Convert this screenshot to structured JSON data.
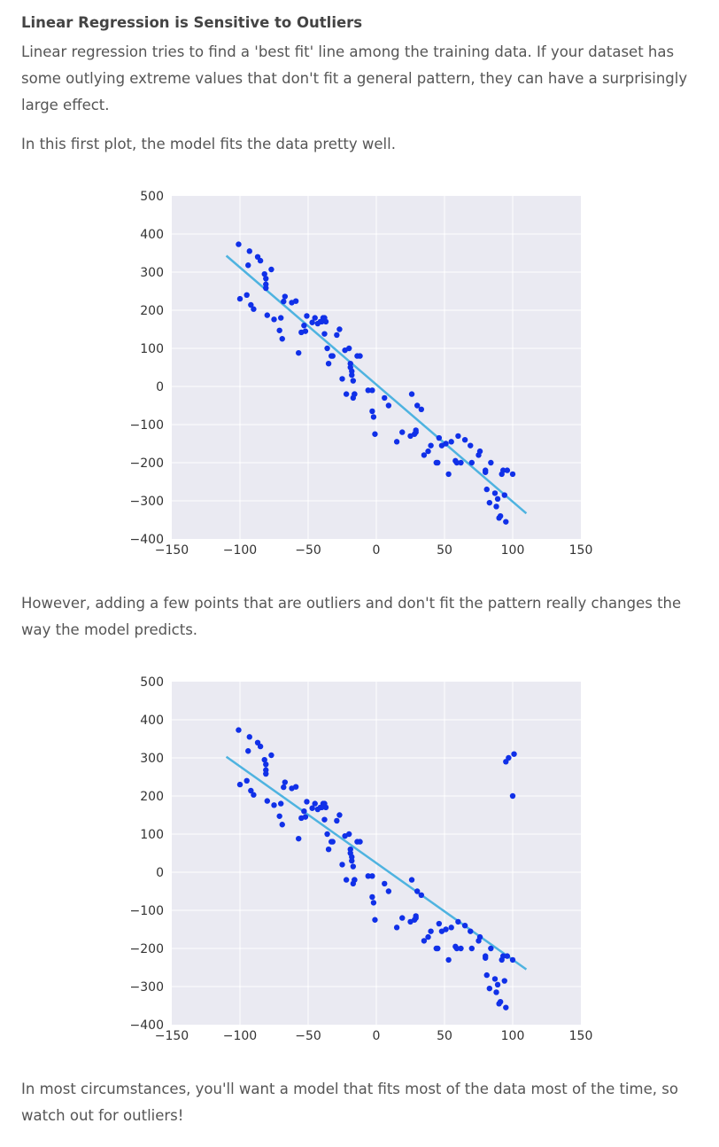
{
  "article": {
    "title": "Linear Regression is Sensitive to Outliers",
    "intro": "Linear regression tries to find a 'best fit' line among the training data. If your dataset has some outlying extreme values that don't fit a general pattern, they can have a surprisingly large effect.",
    "first_plot_caption": "In this first plot, the model fits the data pretty well.",
    "second_plot_caption": "However, adding a few points that are outliers and don't fit the pattern really changes the way the model predicts.",
    "conclusion": "In most circumstances, you'll want a model that fits most of the data most of the time, so watch out for outliers!"
  },
  "colors": {
    "plot_background": "#EAEAF2",
    "grid": "#FFFFFF",
    "points": "#1030E8",
    "fit_line": "#4EB3E0"
  },
  "chart_data": [
    {
      "type": "scatter",
      "title": "",
      "xlabel": "",
      "ylabel": "",
      "xlim": [
        -150,
        150
      ],
      "ylim": [
        -400,
        500
      ],
      "x_ticks": [
        "−150",
        "−100",
        "−50",
        "0",
        "50",
        "100",
        "150"
      ],
      "y_ticks": [
        "500",
        "400",
        "300",
        "200",
        "100",
        "0",
        "−100",
        "−200",
        "−300",
        "−400"
      ],
      "grid": true,
      "legend": "none",
      "fit_line": {
        "x": [
          -110,
          110
        ],
        "y": [
          343,
          -333
        ]
      },
      "points": {
        "x": [
          -101,
          -100,
          -95,
          -94,
          -93,
          -92,
          -90,
          -87,
          -85,
          -82,
          -81,
          -81,
          -81,
          -80,
          -77,
          -75,
          -71,
          -70,
          -69,
          -68,
          -67,
          -62,
          -59,
          -57,
          -55,
          -53,
          -52,
          -51,
          -47,
          -45,
          -43,
          -41,
          -40,
          -39,
          -38,
          -38,
          -37,
          -36,
          -35,
          -33,
          -32,
          -29,
          -27,
          -25,
          -23,
          -22,
          -20,
          -19,
          -19,
          -18,
          -18,
          -17,
          -17,
          -16,
          -16,
          -14,
          -12,
          -6,
          -3,
          -3,
          -2,
          -1,
          6,
          9,
          15,
          19,
          25,
          26,
          28,
          29,
          29,
          30,
          33,
          35,
          38,
          40,
          44,
          45,
          46,
          48,
          51,
          53,
          55,
          58,
          59,
          60,
          62,
          65,
          69,
          70,
          75,
          76,
          80,
          80,
          81,
          83,
          84,
          87,
          88,
          89,
          90,
          91,
          92,
          93,
          94,
          95,
          96,
          100
        ],
        "y": [
          373,
          230,
          240,
          318,
          355,
          214,
          203,
          340,
          330,
          295,
          268,
          258,
          283,
          187,
          307,
          176,
          147,
          180,
          125,
          223,
          236,
          220,
          224,
          88,
          142,
          160,
          145,
          185,
          168,
          180,
          165,
          170,
          170,
          180,
          180,
          138,
          170,
          100,
          60,
          80,
          80,
          135,
          150,
          20,
          95,
          -20,
          100,
          50,
          60,
          40,
          30,
          15,
          -30,
          -20,
          -20,
          80,
          80,
          -10,
          -10,
          -65,
          -80,
          -125,
          -30,
          -50,
          -145,
          -120,
          -130,
          -20,
          -125,
          -120,
          -115,
          -50,
          -60,
          -180,
          -170,
          -155,
          -200,
          -200,
          -135,
          -155,
          -150,
          -230,
          -145,
          -195,
          -200,
          -130,
          -200,
          -140,
          -155,
          -200,
          -180,
          -170,
          -220,
          -225,
          -270,
          -305,
          -200,
          -280,
          -315,
          -295,
          -345,
          -340,
          -230,
          -220,
          -285,
          -355,
          -220,
          -230
        ]
      }
    },
    {
      "type": "scatter",
      "title": "",
      "xlabel": "",
      "ylabel": "",
      "xlim": [
        -150,
        150
      ],
      "ylim": [
        -400,
        500
      ],
      "x_ticks": [
        "−150",
        "−100",
        "−50",
        "0",
        "50",
        "100",
        "150"
      ],
      "y_ticks": [
        "500",
        "400",
        "300",
        "200",
        "100",
        "0",
        "−100",
        "−200",
        "−300",
        "−400"
      ],
      "grid": true,
      "legend": "none",
      "fit_line": {
        "x": [
          -110,
          110
        ],
        "y": [
          303,
          -255
        ]
      },
      "points": {
        "x": [
          -101,
          -100,
          -95,
          -94,
          -93,
          -92,
          -90,
          -87,
          -85,
          -82,
          -81,
          -81,
          -81,
          -80,
          -77,
          -75,
          -71,
          -70,
          -69,
          -68,
          -67,
          -62,
          -59,
          -57,
          -55,
          -53,
          -52,
          -51,
          -47,
          -45,
          -43,
          -41,
          -40,
          -39,
          -38,
          -38,
          -37,
          -36,
          -35,
          -33,
          -32,
          -29,
          -27,
          -25,
          -23,
          -22,
          -20,
          -19,
          -19,
          -18,
          -18,
          -17,
          -17,
          -16,
          -16,
          -14,
          -12,
          -6,
          -3,
          -3,
          -2,
          -1,
          6,
          9,
          15,
          19,
          25,
          26,
          28,
          29,
          29,
          30,
          33,
          35,
          38,
          40,
          44,
          45,
          46,
          48,
          51,
          53,
          55,
          58,
          59,
          60,
          62,
          65,
          69,
          70,
          75,
          76,
          80,
          80,
          81,
          83,
          84,
          87,
          88,
          89,
          90,
          91,
          92,
          93,
          94,
          95,
          96,
          100,
          95,
          97,
          100,
          101
        ],
        "y": [
          373,
          230,
          240,
          318,
          355,
          214,
          203,
          340,
          330,
          295,
          268,
          258,
          283,
          187,
          307,
          176,
          147,
          180,
          125,
          223,
          236,
          220,
          224,
          88,
          142,
          160,
          145,
          185,
          168,
          180,
          165,
          170,
          170,
          180,
          180,
          138,
          170,
          100,
          60,
          80,
          80,
          135,
          150,
          20,
          95,
          -20,
          100,
          50,
          60,
          40,
          30,
          15,
          -30,
          -20,
          -20,
          80,
          80,
          -10,
          -10,
          -65,
          -80,
          -125,
          -30,
          -50,
          -145,
          -120,
          -130,
          -20,
          -125,
          -120,
          -115,
          -50,
          -60,
          -180,
          -170,
          -155,
          -200,
          -200,
          -135,
          -155,
          -150,
          -230,
          -145,
          -195,
          -200,
          -130,
          -200,
          -140,
          -155,
          -200,
          -180,
          -170,
          -220,
          -225,
          -270,
          -305,
          -200,
          -280,
          -315,
          -295,
          -345,
          -340,
          -230,
          -220,
          -285,
          -355,
          -220,
          -230,
          290,
          300,
          200,
          310
        ]
      }
    }
  ]
}
